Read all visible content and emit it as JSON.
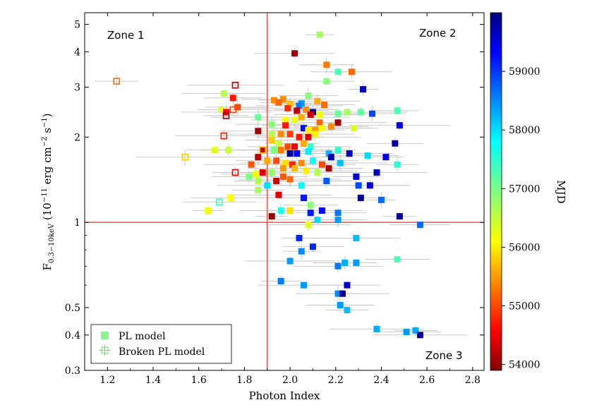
{
  "chart_data": {
    "type": "scatter",
    "xlabel": "Photon Index",
    "ylabel": "F0.3−10keV (10−11 erg cm−2 s−1)",
    "xlim": [
      1.1,
      2.85
    ],
    "ylim": [
      0.3,
      5.5
    ],
    "y_scale": "log",
    "x_ticks": [
      1.2,
      1.4,
      1.6,
      1.8,
      2.0,
      2.2,
      2.4,
      2.6,
      2.8
    ],
    "y_ticks": [
      0.3,
      0.4,
      0.5,
      1,
      2,
      3,
      4,
      5
    ],
    "x_tick_labels": [
      "1.2",
      "1.4",
      "1.6",
      "1.8",
      "2.0",
      "2.2",
      "2.4",
      "2.6",
      "2.8"
    ],
    "y_tick_labels": [
      "0.3",
      "0.4",
      "0.5",
      "1",
      "2",
      "3",
      "4",
      "5"
    ],
    "ylabel_parts": {
      "base": "F",
      "sub": "0.3−10keV",
      "a": " (10",
      "exp1": "−11",
      "b": " erg cm",
      "exp2": "−2",
      "c": " s",
      "exp3": "−1",
      "d": ")"
    },
    "divider_x": 1.9,
    "divider_y": 1.0,
    "divider_color": "#e8302a",
    "zones": [
      {
        "label": "Zone 1",
        "position": "top-left"
      },
      {
        "label": "Zone 2",
        "position": "top-right"
      },
      {
        "label": "Zone 3",
        "position": "bottom-right"
      }
    ],
    "colorbar": {
      "label": "MJD",
      "min": 53900,
      "max": 60000,
      "ticks": [
        54000,
        55000,
        56000,
        57000,
        58000,
        59000
      ],
      "tick_labels": [
        "54000",
        "55000",
        "56000",
        "57000",
        "58000",
        "59000"
      ],
      "colormap": "jet"
    },
    "legend": {
      "position": "bottom-left",
      "entries": [
        {
          "label": "PL model",
          "marker": "filled-square"
        },
        {
          "label": "Broken PL model",
          "marker": "open-square"
        }
      ]
    },
    "series": [
      {
        "name": "PL model",
        "marker": "filled",
        "points": [
          [
            2.13,
            4.6,
            56700
          ],
          [
            2.02,
            3.95,
            54100
          ],
          [
            2.16,
            3.6,
            55300
          ],
          [
            2.21,
            3.4,
            57300
          ],
          [
            2.27,
            3.4,
            55200
          ],
          [
            2.16,
            3.15,
            56900
          ],
          [
            2.32,
            2.95,
            59700
          ],
          [
            1.71,
            2.85,
            56600
          ],
          [
            1.75,
            2.75,
            54700
          ],
          [
            1.93,
            2.7,
            55400
          ],
          [
            1.97,
            2.72,
            55400
          ],
          [
            2.08,
            2.8,
            56900
          ],
          [
            2.05,
            2.63,
            58400
          ],
          [
            2.12,
            2.68,
            55600
          ],
          [
            2.15,
            2.6,
            55200
          ],
          [
            2.0,
            2.62,
            55700
          ],
          [
            2.04,
            2.58,
            58600
          ],
          [
            2.07,
            2.5,
            55400
          ],
          [
            1.95,
            2.65,
            55200
          ],
          [
            1.99,
            2.53,
            54800
          ],
          [
            1.77,
            2.55,
            55000
          ],
          [
            1.7,
            2.5,
            56300
          ],
          [
            1.72,
            2.45,
            54600
          ],
          [
            2.03,
            2.48,
            54200
          ],
          [
            2.1,
            2.45,
            59900
          ],
          [
            2.13,
            2.4,
            56200
          ],
          [
            2.21,
            2.42,
            57100
          ],
          [
            2.25,
            2.45,
            56700
          ],
          [
            2.31,
            2.45,
            57200
          ],
          [
            2.36,
            2.42,
            58900
          ],
          [
            2.47,
            2.48,
            57300
          ],
          [
            1.86,
            2.35,
            57100
          ],
          [
            1.98,
            2.3,
            56100
          ],
          [
            2.02,
            2.3,
            56200
          ],
          [
            2.05,
            2.35,
            55600
          ],
          [
            2.09,
            2.4,
            54300
          ],
          [
            2.13,
            2.25,
            55200
          ],
          [
            2.21,
            2.25,
            54100
          ],
          [
            1.92,
            2.22,
            56900
          ],
          [
            1.98,
            2.2,
            54700
          ],
          [
            2.06,
            2.15,
            59300
          ],
          [
            2.08,
            2.12,
            56000
          ],
          [
            2.11,
            2.12,
            55500
          ],
          [
            2.14,
            2.15,
            56100
          ],
          [
            2.18,
            2.18,
            55400
          ],
          [
            2.28,
            2.15,
            56300
          ],
          [
            2.48,
            2.2,
            59500
          ],
          [
            1.86,
            2.1,
            54100
          ],
          [
            1.92,
            2.05,
            56600
          ],
          [
            1.96,
            2.05,
            55400
          ],
          [
            2.0,
            2.05,
            54900
          ],
          [
            2.04,
            2.0,
            54700
          ],
          [
            2.08,
            2.0,
            54400
          ],
          [
            2.11,
            2.05,
            56000
          ],
          [
            1.92,
            1.95,
            55800
          ],
          [
            1.95,
            1.9,
            56500
          ],
          [
            1.99,
            1.85,
            55000
          ],
          [
            2.02,
            1.85,
            54500
          ],
          [
            2.06,
            1.9,
            55600
          ],
          [
            2.09,
            1.85,
            57400
          ],
          [
            2.46,
            1.9,
            59800
          ],
          [
            1.67,
            1.8,
            56300
          ],
          [
            1.73,
            1.8,
            56500
          ],
          [
            1.88,
            1.8,
            54200
          ],
          [
            1.93,
            1.8,
            57000
          ],
          [
            1.96,
            1.8,
            55300
          ],
          [
            2.0,
            1.75,
            59900
          ],
          [
            2.03,
            1.75,
            59300
          ],
          [
            2.08,
            1.78,
            57900
          ],
          [
            2.17,
            1.75,
            58200
          ],
          [
            2.21,
            1.8,
            57500
          ],
          [
            2.26,
            1.75,
            59700
          ],
          [
            2.34,
            1.72,
            58000
          ],
          [
            2.42,
            1.7,
            59500
          ],
          [
            1.86,
            1.7,
            54200
          ],
          [
            1.9,
            1.65,
            55600
          ],
          [
            1.94,
            1.65,
            55000
          ],
          [
            1.98,
            1.62,
            55900
          ],
          [
            2.01,
            1.6,
            54800
          ],
          [
            2.05,
            1.62,
            55400
          ],
          [
            2.1,
            1.65,
            57800
          ],
          [
            2.14,
            1.6,
            55000
          ],
          [
            2.18,
            1.7,
            59800
          ],
          [
            2.22,
            1.62,
            58200
          ],
          [
            2.17,
            1.55,
            54100
          ],
          [
            2.47,
            1.6,
            57500
          ],
          [
            1.83,
            1.6,
            55100
          ],
          [
            1.85,
            1.48,
            56200
          ],
          [
            1.88,
            1.5,
            54400
          ],
          [
            1.92,
            1.5,
            56800
          ],
          [
            1.97,
            1.55,
            55500
          ],
          [
            2.02,
            1.55,
            55700
          ],
          [
            2.07,
            1.52,
            56000
          ],
          [
            2.12,
            1.5,
            56600
          ],
          [
            2.29,
            1.45,
            59600
          ],
          [
            2.38,
            1.5,
            59700
          ],
          [
            1.82,
            1.45,
            57000
          ],
          [
            1.86,
            1.4,
            56600
          ],
          [
            1.9,
            1.35,
            58000
          ],
          [
            1.94,
            1.4,
            54300
          ],
          [
            1.97,
            1.45,
            55100
          ],
          [
            2.0,
            1.42,
            55200
          ],
          [
            2.05,
            1.35,
            57800
          ],
          [
            2.16,
            1.4,
            58800
          ],
          [
            2.3,
            1.35,
            58900
          ],
          [
            2.35,
            1.35,
            59600
          ],
          [
            1.86,
            1.3,
            56700
          ],
          [
            1.95,
            1.25,
            54400
          ],
          [
            2.06,
            1.22,
            59200
          ],
          [
            2.31,
            1.22,
            59800
          ],
          [
            2.4,
            1.2,
            58700
          ],
          [
            1.74,
            1.22,
            56100
          ],
          [
            2.09,
            1.15,
            56900
          ],
          [
            1.64,
            1.1,
            56200
          ],
          [
            1.96,
            1.1,
            57600
          ],
          [
            2.0,
            1.1,
            55900
          ],
          [
            2.09,
            1.08,
            59200
          ],
          [
            2.14,
            1.1,
            59300
          ],
          [
            2.21,
            1.08,
            58600
          ],
          [
            1.92,
            1.05,
            54000
          ],
          [
            2.12,
            1.02,
            58000
          ],
          [
            2.21,
            1.02,
            58400
          ],
          [
            2.48,
            1.05,
            59900
          ],
          [
            2.08,
            0.98,
            56300
          ],
          [
            2.57,
            0.98,
            58700
          ],
          [
            2.04,
            0.88,
            59100
          ],
          [
            2.29,
            0.88,
            58200
          ],
          [
            2.1,
            0.82,
            59100
          ],
          [
            2.05,
            0.79,
            58500
          ],
          [
            2.0,
            0.73,
            58400
          ],
          [
            2.24,
            0.72,
            58300
          ],
          [
            2.29,
            0.72,
            58400
          ],
          [
            2.21,
            0.7,
            58600
          ],
          [
            2.47,
            0.74,
            57300
          ],
          [
            1.96,
            0.62,
            58600
          ],
          [
            2.06,
            0.6,
            58400
          ],
          [
            2.25,
            0.6,
            59600
          ],
          [
            2.21,
            0.56,
            58500
          ],
          [
            2.23,
            0.56,
            59900
          ],
          [
            2.22,
            0.51,
            58400
          ],
          [
            2.25,
            0.49,
            58200
          ],
          [
            2.38,
            0.42,
            58300
          ],
          [
            2.51,
            0.41,
            58400
          ],
          [
            2.55,
            0.415,
            58300
          ],
          [
            2.57,
            0.4,
            59900
          ]
        ]
      },
      {
        "name": "Broken PL model",
        "marker": "open",
        "points": [
          [
            1.24,
            3.15,
            55200
          ],
          [
            1.76,
            3.05,
            54200
          ],
          [
            1.75,
            2.5,
            55000
          ],
          [
            1.72,
            2.38,
            54000
          ],
          [
            1.71,
            2.02,
            54700
          ],
          [
            1.88,
            1.8,
            55600
          ],
          [
            1.76,
            1.5,
            54500
          ],
          [
            1.54,
            1.7,
            55800
          ],
          [
            1.69,
            1.18,
            57300
          ]
        ]
      }
    ]
  }
}
